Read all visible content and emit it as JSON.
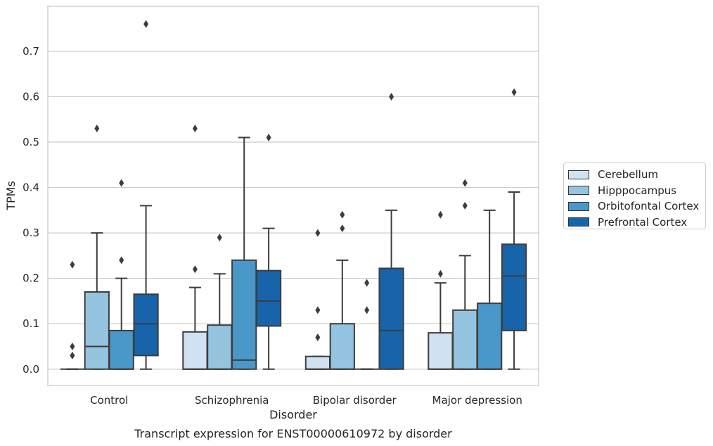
{
  "chart_data": {
    "type": "box",
    "title": "",
    "caption": "Transcript expression for ENST00000610972 by disorder",
    "xlabel": "Disorder",
    "ylabel": "TPMs",
    "ylim": [
      -0.036,
      0.799
    ],
    "yticks": [
      "0.0",
      "0.1",
      "0.2",
      "0.3",
      "0.4",
      "0.5",
      "0.6",
      "0.7"
    ],
    "ytick_values": [
      0.0,
      0.1,
      0.2,
      0.3,
      0.4,
      0.5,
      0.6,
      0.7
    ],
    "grid": "horizontal",
    "legend_position": "right",
    "categories": [
      "Control",
      "Schizophrenia",
      "Bipolar disorder",
      "Major depression"
    ],
    "series": [
      {
        "name": "Cerebellum",
        "color": "#d0e1f2",
        "boxes": [
          {
            "q1": 0.0,
            "median": 0.0,
            "q3": 0.0,
            "whislo": 0.0,
            "whishi": 0.0,
            "fliers": [
              0.23,
              0.05,
              0.03
            ]
          },
          {
            "q1": 0.0,
            "median": 0.0,
            "q3": 0.082,
            "whislo": 0.0,
            "whishi": 0.18,
            "fliers": [
              0.53,
              0.22
            ]
          },
          {
            "q1": 0.0,
            "median": 0.0,
            "q3": 0.028,
            "whislo": 0.0,
            "whishi": 0.028,
            "fliers": [
              0.3,
              0.13,
              0.07
            ]
          },
          {
            "q1": 0.0,
            "median": 0.0,
            "q3": 0.08,
            "whislo": 0.0,
            "whishi": 0.19,
            "fliers": [
              0.34,
              0.21
            ]
          }
        ]
      },
      {
        "name": "Hipppocampus",
        "color": "#94c4df",
        "boxes": [
          {
            "q1": 0.0,
            "median": 0.05,
            "q3": 0.17,
            "whislo": 0.0,
            "whishi": 0.3,
            "fliers": [
              0.53
            ]
          },
          {
            "q1": 0.0,
            "median": 0.0,
            "q3": 0.097,
            "whislo": 0.0,
            "whishi": 0.21,
            "fliers": [
              0.29
            ]
          },
          {
            "q1": 0.0,
            "median": 0.0,
            "q3": 0.1,
            "whislo": 0.0,
            "whishi": 0.24,
            "fliers": [
              0.34,
              0.31
            ]
          },
          {
            "q1": 0.0,
            "median": 0.0,
            "q3": 0.13,
            "whislo": 0.0,
            "whishi": 0.25,
            "fliers": [
              0.41,
              0.36
            ]
          }
        ]
      },
      {
        "name": "Orbitofontal Cortex",
        "color": "#4a98c9",
        "boxes": [
          {
            "q1": 0.0,
            "median": 0.0,
            "q3": 0.085,
            "whislo": 0.0,
            "whishi": 0.2,
            "fliers": [
              0.41,
              0.24
            ]
          },
          {
            "q1": 0.0,
            "median": 0.02,
            "q3": 0.24,
            "whislo": 0.0,
            "whishi": 0.51,
            "fliers": []
          },
          {
            "q1": 0.0,
            "median": 0.0,
            "q3": 0.0,
            "whislo": 0.0,
            "whishi": 0.0,
            "fliers": [
              0.19,
              0.13
            ]
          },
          {
            "q1": 0.0,
            "median": 0.0,
            "q3": 0.145,
            "whislo": 0.0,
            "whishi": 0.35,
            "fliers": []
          }
        ]
      },
      {
        "name": "Prefrontal Cortex",
        "color": "#1764ab",
        "boxes": [
          {
            "q1": 0.03,
            "median": 0.1,
            "q3": 0.165,
            "whislo": 0.0,
            "whishi": 0.36,
            "fliers": [
              0.76
            ]
          },
          {
            "q1": 0.095,
            "median": 0.15,
            "q3": 0.217,
            "whislo": 0.0,
            "whishi": 0.31,
            "fliers": [
              0.51
            ]
          },
          {
            "q1": 0.0,
            "median": 0.085,
            "q3": 0.222,
            "whislo": 0.0,
            "whishi": 0.35,
            "fliers": [
              0.6
            ]
          },
          {
            "q1": 0.085,
            "median": 0.205,
            "q3": 0.275,
            "whislo": 0.0,
            "whishi": 0.39,
            "fliers": [
              0.61
            ]
          }
        ]
      }
    ]
  }
}
